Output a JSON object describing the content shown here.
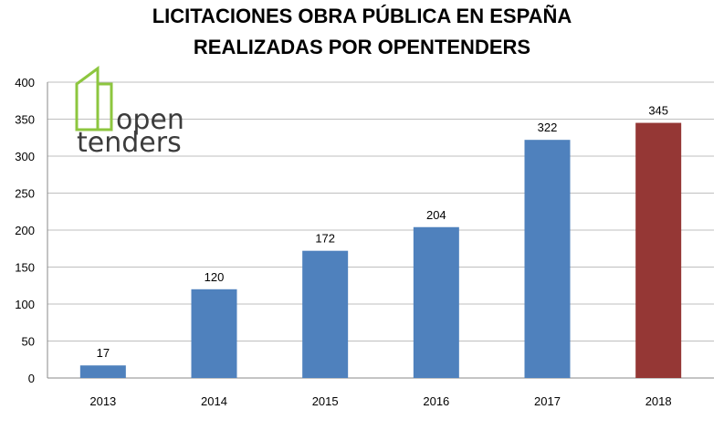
{
  "chart_data": {
    "type": "bar",
    "title": [
      "LICITACIONES OBRA PÚBLICA EN ESPAÑA",
      "REALIZADAS POR OPENTENDERS"
    ],
    "categories": [
      "2013",
      "2014",
      "2015",
      "2016",
      "2017",
      "2018"
    ],
    "values": [
      17,
      120,
      172,
      204,
      322,
      345
    ],
    "data_labels": [
      "17",
      "120",
      "172",
      "204",
      "322",
      "345"
    ],
    "ylim": [
      0,
      400
    ],
    "yticks": [
      "0",
      "50",
      "100",
      "150",
      "200",
      "250",
      "300",
      "350",
      "400"
    ],
    "grid": true,
    "colors": [
      "#4f81bd",
      "#4f81bd",
      "#4f81bd",
      "#4f81bd",
      "#4f81bd",
      "#953735"
    ],
    "xlabel": "",
    "ylabel": ""
  },
  "logo": {
    "line1": "open",
    "line2": "tenders",
    "accent": "#8dc63f",
    "text_color": "#3c3c3c"
  }
}
